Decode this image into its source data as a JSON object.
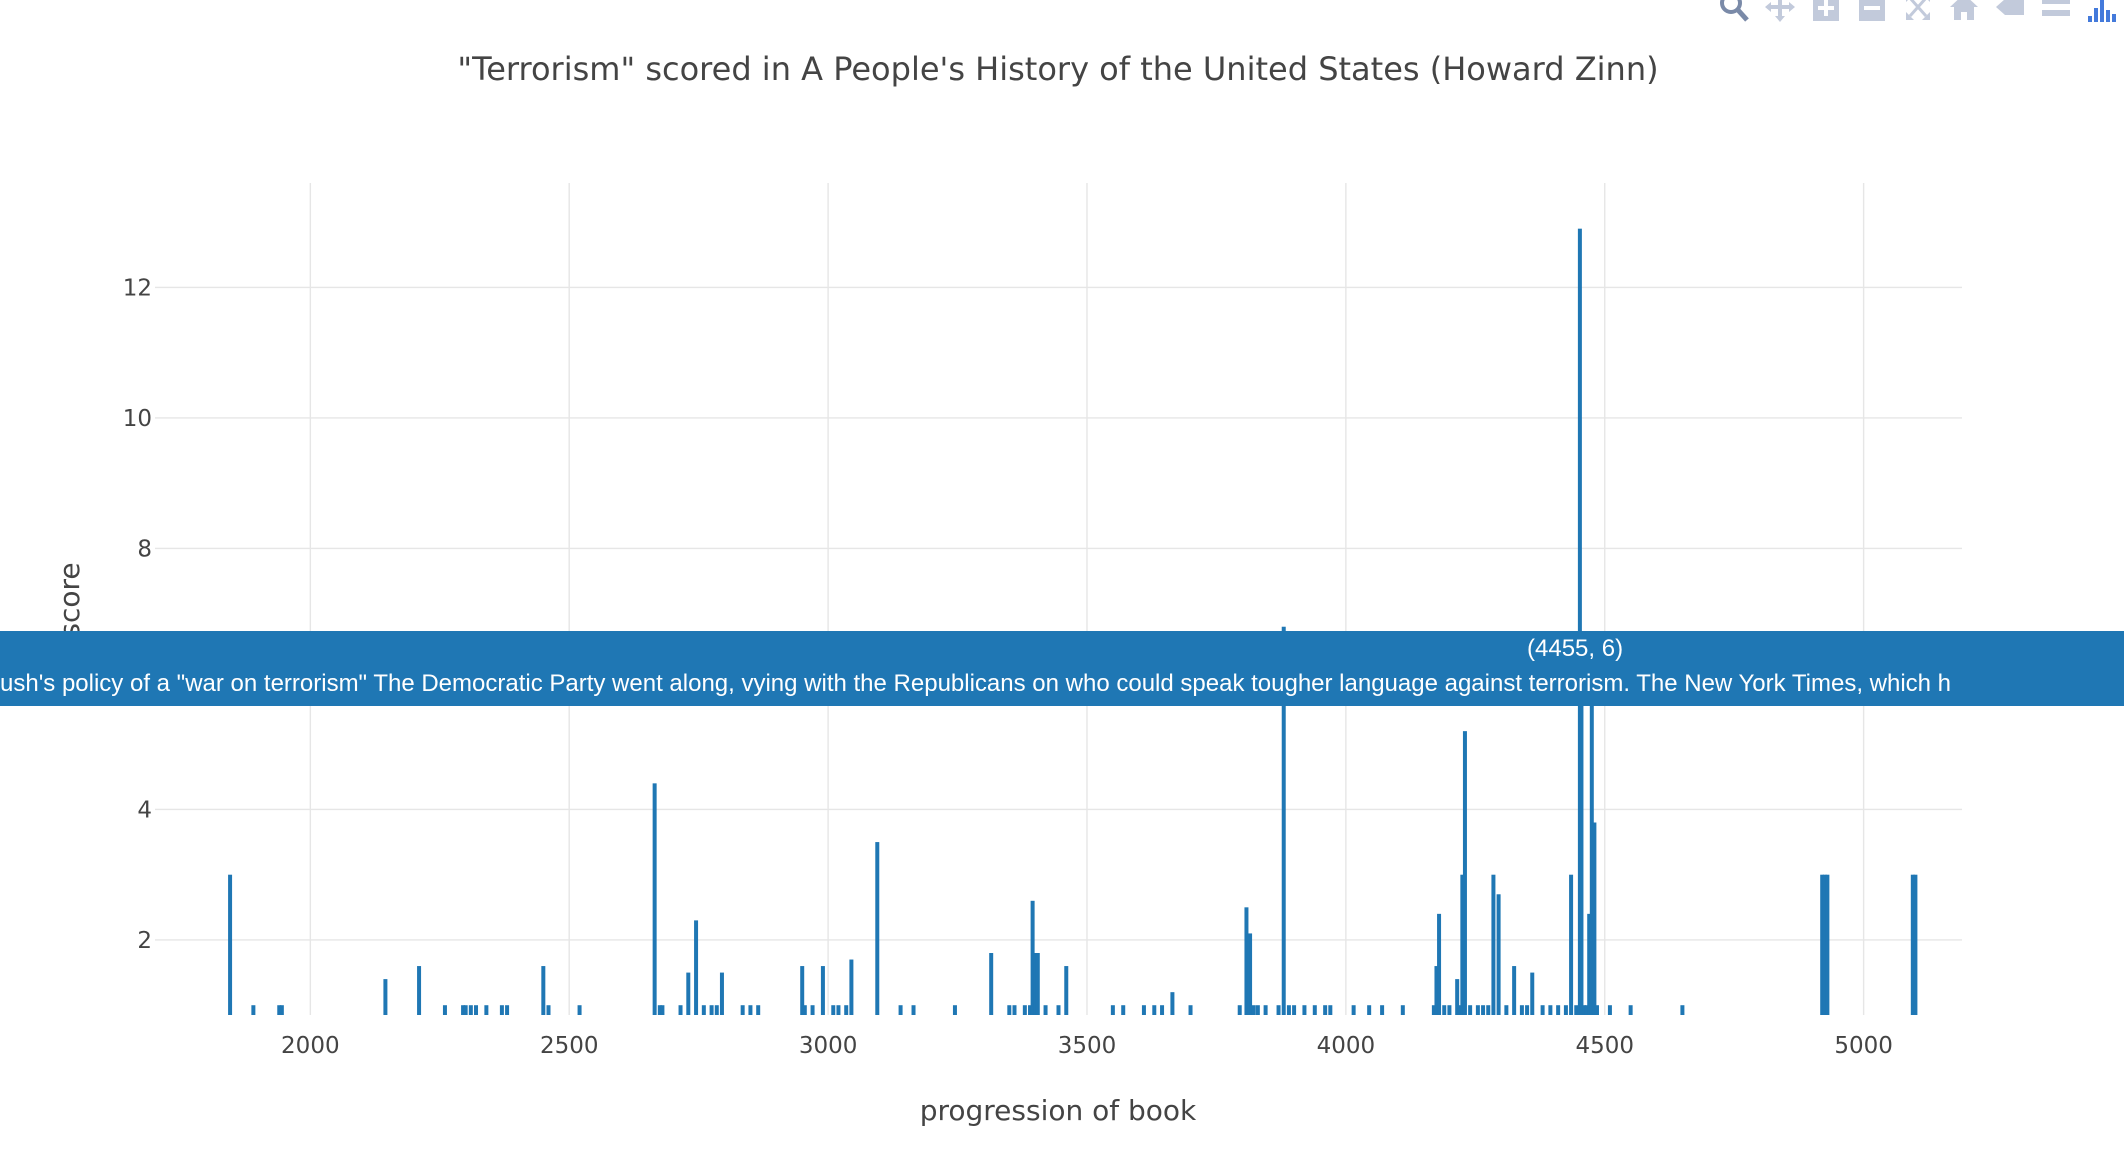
{
  "chart_data": {
    "type": "bar",
    "title": "\"Terrorism\" scored in A People's History of the United States (Howard Zinn)",
    "xlabel": "progression of book",
    "ylabel": "score",
    "xlim": [
      1700,
      5190
    ],
    "ylim": [
      0.85,
      13.6
    ],
    "xticks": [
      2000,
      2500,
      3000,
      3500,
      4000,
      4500,
      5000
    ],
    "yticks": [
      2,
      4,
      6,
      8,
      10,
      12
    ],
    "grid": true,
    "bar_color": "#1f77b4",
    "x": [
      1845,
      1890,
      1940,
      1945,
      2145,
      2210,
      2260,
      2295,
      2300,
      2310,
      2320,
      2340,
      2370,
      2380,
      2450,
      2460,
      2520,
      2665,
      2675,
      2680,
      2715,
      2730,
      2745,
      2760,
      2775,
      2785,
      2795,
      2835,
      2850,
      2865,
      2950,
      2955,
      2970,
      2990,
      3010,
      3020,
      3035,
      3045,
      3095,
      3140,
      3165,
      3245,
      3315,
      3350,
      3360,
      3380,
      3390,
      3395,
      3400,
      3405,
      3420,
      3445,
      3460,
      3550,
      3570,
      3610,
      3630,
      3645,
      3665,
      3700,
      3795,
      3808,
      3815,
      3822,
      3830,
      3845,
      3870,
      3880,
      3890,
      3900,
      3920,
      3940,
      3960,
      3970,
      4015,
      4045,
      4070,
      4110,
      4170,
      4175,
      4180,
      4190,
      4200,
      4215,
      4220,
      4225,
      4230,
      4240,
      4255,
      4265,
      4275,
      4285,
      4295,
      4310,
      4325,
      4340,
      4350,
      4360,
      4380,
      4395,
      4410,
      4425,
      4435,
      4445,
      4452,
      4455,
      4460,
      4465,
      4470,
      4475,
      4480,
      4485,
      4510,
      4550,
      4650,
      4920,
      4925,
      4930,
      5095,
      5100
    ],
    "values": [
      3.0,
      1.0,
      1.0,
      1.0,
      1.4,
      1.6,
      1.0,
      1.0,
      1.0,
      1.0,
      1.0,
      1.0,
      1.0,
      1.0,
      1.6,
      1.0,
      1.0,
      4.4,
      1.0,
      1.0,
      1.0,
      1.5,
      2.3,
      1.0,
      1.0,
      1.0,
      1.5,
      1.0,
      1.0,
      1.0,
      1.6,
      1.0,
      1.0,
      1.6,
      1.0,
      1.0,
      1.0,
      1.7,
      3.5,
      1.0,
      1.0,
      1.0,
      1.8,
      1.0,
      1.0,
      1.0,
      1.0,
      2.6,
      1.8,
      1.8,
      1.0,
      1.0,
      1.6,
      1.0,
      1.0,
      1.0,
      1.0,
      1.0,
      1.2,
      1.0,
      1.0,
      2.5,
      2.1,
      1.0,
      1.0,
      1.0,
      1.0,
      6.8,
      1.0,
      1.0,
      1.0,
      1.0,
      1.0,
      1.0,
      1.0,
      1.0,
      1.0,
      1.0,
      1.0,
      1.6,
      2.4,
      1.0,
      1.0,
      1.4,
      1.0,
      3.0,
      5.2,
      1.0,
      1.0,
      1.0,
      1.0,
      3.0,
      2.7,
      1.0,
      1.6,
      1.0,
      1.0,
      1.5,
      1.0,
      1.0,
      1.0,
      1.0,
      3.0,
      1.0,
      12.9,
      6.0,
      1.0,
      1.0,
      2.4,
      5.6,
      3.8,
      1.0,
      1.0,
      1.0,
      1.0,
      3.0,
      3.0,
      3.0,
      3.0,
      3.0
    ]
  },
  "hover": {
    "coord": "(4455, 6)",
    "text": "ush's policy of a \"war on terrorism\" The Democratic Party went along, vying with the Republicans on who could speak tougher language against terrorism. The New York Times, which h"
  },
  "modebar": {
    "buttons": [
      "zoom-icon",
      "pan-icon",
      "zoom-in-icon",
      "zoom-out-icon",
      "autoscale-icon",
      "reset-axes-icon",
      "hover-closest-icon",
      "hover-compare-icon",
      "plotly-logo-icon"
    ]
  }
}
